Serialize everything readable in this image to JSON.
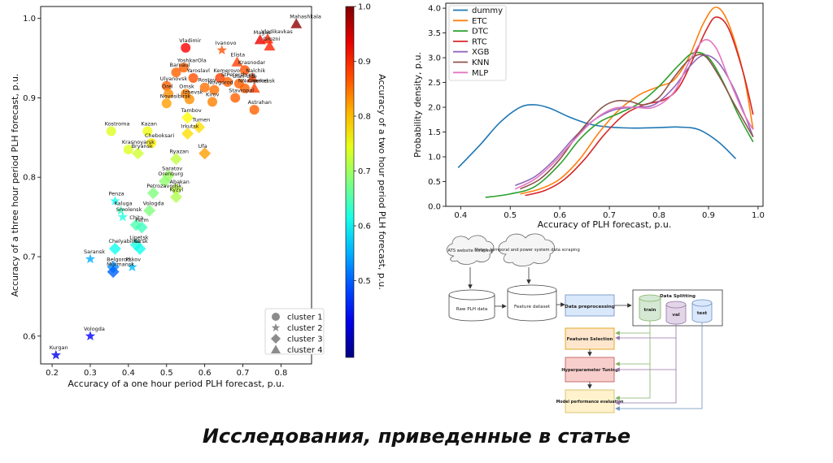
{
  "caption": "Исследования, приведенные в статье",
  "chart_data": [
    {
      "type": "scatter",
      "xlabel": "Accuracy of a one hour period PLH forecast, p.u.",
      "ylabel": "Accuracy of a three hour period PLH forecast, p.u.",
      "colorbar_label": "Accuracy of a two hour period PLH forecast, p.u.",
      "xlim": [
        0.17,
        0.88
      ],
      "ylim": [
        0.565,
        1.015
      ],
      "x_ticks": [
        "0.2",
        "0.3",
        "0.4",
        "0.5",
        "0.6",
        "0.7",
        "0.8"
      ],
      "x_tick_values": [
        0.2,
        0.3,
        0.4,
        0.5,
        0.6,
        0.7,
        0.8
      ],
      "y_ticks": [
        "0.6",
        "0.7",
        "0.8",
        "0.9",
        "1.0"
      ],
      "y_tick_values": [
        0.6,
        0.7,
        0.8,
        0.9,
        1.0
      ],
      "colorbar_range": [
        0.36,
        1.0
      ],
      "colorbar_ticks": [
        "0.5",
        "0.6",
        "0.7",
        "0.8",
        "0.9",
        "1.0"
      ],
      "colorbar_tick_values": [
        0.5,
        0.6,
        0.7,
        0.8,
        0.9,
        1.0
      ],
      "colormap": "jet",
      "legend_position": "bottom-right",
      "legend": [
        {
          "label": "cluster 1",
          "marker": "circle"
        },
        {
          "label": "cluster 2",
          "marker": "star"
        },
        {
          "label": "cluster 3",
          "marker": "diamond"
        },
        {
          "label": "cluster 4",
          "marker": "triangle"
        }
      ],
      "points": [
        {
          "label": "Mahashkala",
          "x": 0.84,
          "y": 0.993,
          "c": 0.99,
          "cluster": 4
        },
        {
          "label": "Magas",
          "x": 0.745,
          "y": 0.973,
          "c": 0.93,
          "cluster": 4
        },
        {
          "label": "Vladikavkas",
          "x": 0.765,
          "y": 0.974,
          "c": 0.9,
          "cluster": 4
        },
        {
          "label": "Grozni",
          "x": 0.77,
          "y": 0.965,
          "c": 0.9,
          "cluster": 4
        },
        {
          "label": "Vladimir",
          "x": 0.55,
          "y": 0.963,
          "c": 0.92,
          "cluster": 1
        },
        {
          "label": "Ivanovo",
          "x": 0.645,
          "y": 0.96,
          "c": 0.87,
          "cluster": 2
        },
        {
          "label": "YoshkarOla",
          "x": 0.545,
          "y": 0.938,
          "c": 0.86,
          "cluster": 1
        },
        {
          "label": "Elista",
          "x": 0.685,
          "y": 0.945,
          "c": 0.88,
          "cluster": 4
        },
        {
          "label": "Barnaul",
          "x": 0.525,
          "y": 0.932,
          "c": 0.86,
          "cluster": 1
        },
        {
          "label": "Krasnodar",
          "x": 0.705,
          "y": 0.935,
          "c": 0.87,
          "cluster": 1
        },
        {
          "label": "Yaroslavl",
          "x": 0.57,
          "y": 0.925,
          "c": 0.87,
          "cluster": 1
        },
        {
          "label": "Kemerovo",
          "x": 0.64,
          "y": 0.925,
          "c": 0.88,
          "cluster": 1
        },
        {
          "label": "Nalchik",
          "x": 0.725,
          "y": 0.925,
          "c": 0.88,
          "cluster": 4
        },
        {
          "label": "Ulyanovsk",
          "x": 0.5,
          "y": 0.915,
          "c": 0.86,
          "cluster": 1
        },
        {
          "label": "StPetersburg",
          "x": 0.66,
          "y": 0.92,
          "c": 0.86,
          "cluster": 1
        },
        {
          "label": "Ulan-Ude",
          "x": 0.69,
          "y": 0.918,
          "c": 0.86,
          "cluster": 1
        },
        {
          "label": "NNovgorod",
          "x": 0.705,
          "y": 0.912,
          "c": 0.86,
          "cluster": 1
        },
        {
          "label": "Rostov",
          "x": 0.6,
          "y": 0.913,
          "c": 0.85,
          "cluster": 1
        },
        {
          "label": "Novgorod",
          "x": 0.625,
          "y": 0.91,
          "c": 0.85,
          "cluster": 1
        },
        {
          "label": "Orel",
          "x": 0.505,
          "y": 0.905,
          "c": 0.83,
          "cluster": 1
        },
        {
          "label": "Omsk",
          "x": 0.55,
          "y": 0.905,
          "c": 0.84,
          "cluster": 1
        },
        {
          "label": "Cherkessk",
          "x": 0.73,
          "y": 0.912,
          "c": 0.88,
          "cluster": 4
        },
        {
          "label": "Izhevsk",
          "x": 0.56,
          "y": 0.898,
          "c": 0.83,
          "cluster": 1
        },
        {
          "label": "Kirov",
          "x": 0.62,
          "y": 0.895,
          "c": 0.84,
          "cluster": 1
        },
        {
          "label": "Stavropol",
          "x": 0.68,
          "y": 0.9,
          "c": 0.86,
          "cluster": 1
        },
        {
          "label": "Novosibirsk",
          "x": 0.5,
          "y": 0.893,
          "c": 0.82,
          "cluster": 1
        },
        {
          "label": "Astrahan",
          "x": 0.73,
          "y": 0.885,
          "c": 0.86,
          "cluster": 1
        },
        {
          "label": "Tambov",
          "x": 0.555,
          "y": 0.875,
          "c": 0.76,
          "cluster": 3
        },
        {
          "label": "Tumen",
          "x": 0.585,
          "y": 0.863,
          "c": 0.78,
          "cluster": 3
        },
        {
          "label": "Kostroma",
          "x": 0.355,
          "y": 0.858,
          "c": 0.74,
          "cluster": 1
        },
        {
          "label": "Kazan",
          "x": 0.45,
          "y": 0.858,
          "c": 0.75,
          "cluster": 1
        },
        {
          "label": "Irkutsk",
          "x": 0.555,
          "y": 0.855,
          "c": 0.78,
          "cluster": 3
        },
        {
          "label": "Cheboksari",
          "x": 0.46,
          "y": 0.843,
          "c": 0.77,
          "cluster": 1
        },
        {
          "label": "Ufa",
          "x": 0.6,
          "y": 0.83,
          "c": 0.82,
          "cluster": 3
        },
        {
          "label": "Krasnoyarsk",
          "x": 0.4,
          "y": 0.835,
          "c": 0.74,
          "cluster": 1
        },
        {
          "label": "Bryansk",
          "x": 0.425,
          "y": 0.83,
          "c": 0.73,
          "cluster": 3
        },
        {
          "label": "Ryazan",
          "x": 0.525,
          "y": 0.823,
          "c": 0.72,
          "cluster": 3
        },
        {
          "label": "Saratov",
          "x": 0.505,
          "y": 0.802,
          "c": 0.7,
          "cluster": 3
        },
        {
          "label": "Orenburg",
          "x": 0.495,
          "y": 0.795,
          "c": 0.69,
          "cluster": 3
        },
        {
          "label": "Abakan",
          "x": 0.525,
          "y": 0.785,
          "c": 0.72,
          "cluster": 3
        },
        {
          "label": "Petrozavodsk",
          "x": 0.465,
          "y": 0.78,
          "c": 0.68,
          "cluster": 3
        },
        {
          "label": "Kyzyl",
          "x": 0.525,
          "y": 0.775,
          "c": 0.71,
          "cluster": 3
        },
        {
          "label": "Penza",
          "x": 0.365,
          "y": 0.77,
          "c": 0.61,
          "cluster": 2
        },
        {
          "label": "Kaluga",
          "x": 0.38,
          "y": 0.758,
          "c": 0.64,
          "cluster": 2
        },
        {
          "label": "Vologda",
          "x": 0.455,
          "y": 0.758,
          "c": 0.68,
          "cluster": 3
        },
        {
          "label": "Smolensk",
          "x": 0.385,
          "y": 0.75,
          "c": 0.62,
          "cluster": 2
        },
        {
          "label": "Chita",
          "x": 0.42,
          "y": 0.74,
          "c": 0.65,
          "cluster": 3
        },
        {
          "label": "Perm",
          "x": 0.435,
          "y": 0.737,
          "c": 0.64,
          "cluster": 3
        },
        {
          "label": "Lipetsk",
          "x": 0.42,
          "y": 0.715,
          "c": 0.62,
          "cluster": 3
        },
        {
          "label": "Chelyabinsk",
          "x": 0.365,
          "y": 0.71,
          "c": 0.61,
          "cluster": 3
        },
        {
          "label": "Kursk",
          "x": 0.43,
          "y": 0.71,
          "c": 0.61,
          "cluster": 3
        },
        {
          "label": "Saransk",
          "x": 0.3,
          "y": 0.697,
          "c": 0.55,
          "cluster": 2
        },
        {
          "label": "Belgorod",
          "x": 0.36,
          "y": 0.687,
          "c": 0.53,
          "cluster": 3
        },
        {
          "label": "Pskov",
          "x": 0.41,
          "y": 0.687,
          "c": 0.56,
          "cluster": 2
        },
        {
          "label": "Murmansk",
          "x": 0.36,
          "y": 0.681,
          "c": 0.5,
          "cluster": 3
        },
        {
          "label": "Vologda",
          "x": 0.3,
          "y": 0.6,
          "c": 0.44,
          "cluster": 2
        },
        {
          "label": "Kurgan",
          "x": 0.21,
          "y": 0.576,
          "c": 0.43,
          "cluster": 2
        }
      ]
    },
    {
      "type": "line",
      "xlabel": "Accuracy of PLH forecast, p.u.",
      "ylabel": "Probability density, p.u.",
      "xlim": [
        0.37,
        1.01
      ],
      "ylim": [
        0.0,
        4.1
      ],
      "x_ticks": [
        "0.4",
        "0.5",
        "0.6",
        "0.7",
        "0.8",
        "0.9",
        "1.0"
      ],
      "x_tick_values": [
        0.4,
        0.5,
        0.6,
        0.7,
        0.8,
        0.9,
        1.0
      ],
      "y_ticks": [
        "0.0",
        "0.5",
        "1.0",
        "1.5",
        "2.0",
        "2.5",
        "3.0",
        "3.5",
        "4.0"
      ],
      "y_tick_values": [
        0.0,
        0.5,
        1.0,
        1.5,
        2.0,
        2.5,
        3.0,
        3.5,
        4.0
      ],
      "legend_position": "top-left",
      "series": [
        {
          "name": "dummy",
          "color": "#1f77b4",
          "x": [
            0.395,
            0.44,
            0.48,
            0.52,
            0.55,
            0.58,
            0.62,
            0.66,
            0.7,
            0.75,
            0.8,
            0.84,
            0.88,
            0.92,
            0.955
          ],
          "y": [
            0.78,
            1.25,
            1.7,
            2.0,
            2.05,
            1.98,
            1.8,
            1.66,
            1.6,
            1.58,
            1.59,
            1.6,
            1.55,
            1.3,
            0.96
          ]
        },
        {
          "name": "ETC",
          "color": "#ff7f0e",
          "x": [
            0.52,
            0.56,
            0.6,
            0.64,
            0.68,
            0.72,
            0.76,
            0.8,
            0.83,
            0.86,
            0.89,
            0.915,
            0.94,
            0.97,
            0.99
          ],
          "y": [
            0.25,
            0.35,
            0.55,
            0.95,
            1.5,
            1.95,
            2.25,
            2.42,
            2.55,
            3.0,
            3.7,
            4.02,
            3.7,
            2.7,
            1.55
          ]
        },
        {
          "name": "DTC",
          "color": "#2ca02c",
          "x": [
            0.45,
            0.5,
            0.55,
            0.6,
            0.64,
            0.68,
            0.72,
            0.76,
            0.8,
            0.84,
            0.87,
            0.9,
            0.93,
            0.96,
            0.99
          ],
          "y": [
            0.18,
            0.25,
            0.4,
            0.85,
            1.35,
            1.7,
            1.88,
            2.08,
            2.42,
            2.85,
            3.1,
            3.0,
            2.5,
            1.85,
            1.3
          ]
        },
        {
          "name": "RTC",
          "color": "#d62728",
          "x": [
            0.53,
            0.57,
            0.61,
            0.65,
            0.69,
            0.73,
            0.77,
            0.81,
            0.84,
            0.87,
            0.895,
            0.915,
            0.94,
            0.97,
            0.99
          ],
          "y": [
            0.22,
            0.32,
            0.55,
            0.95,
            1.45,
            1.85,
            2.05,
            2.15,
            2.4,
            3.0,
            3.55,
            3.82,
            3.6,
            2.7,
            1.85
          ]
        },
        {
          "name": "XGB",
          "color": "#9467bd",
          "x": [
            0.51,
            0.55,
            0.59,
            0.63,
            0.67,
            0.71,
            0.75,
            0.79,
            0.83,
            0.86,
            0.89,
            0.92,
            0.95,
            0.975,
            0.99
          ],
          "y": [
            0.42,
            0.6,
            0.95,
            1.4,
            1.75,
            1.95,
            2.0,
            2.05,
            2.4,
            2.8,
            3.05,
            2.9,
            2.4,
            1.8,
            1.4
          ]
        },
        {
          "name": "KNN",
          "color": "#8c564b",
          "x": [
            0.52,
            0.56,
            0.6,
            0.64,
            0.68,
            0.71,
            0.74,
            0.77,
            0.8,
            0.83,
            0.86,
            0.89,
            0.92,
            0.95,
            0.99
          ],
          "y": [
            0.35,
            0.55,
            0.95,
            1.5,
            1.95,
            2.12,
            2.12,
            2.05,
            2.2,
            2.6,
            2.95,
            3.05,
            2.65,
            2.1,
            1.4
          ]
        },
        {
          "name": "MLP",
          "color": "#e377c2",
          "x": [
            0.51,
            0.55,
            0.59,
            0.63,
            0.67,
            0.71,
            0.75,
            0.79,
            0.83,
            0.86,
            0.89,
            0.915,
            0.94,
            0.97,
            0.99
          ],
          "y": [
            0.35,
            0.55,
            0.9,
            1.35,
            1.75,
            1.98,
            2.0,
            2.0,
            2.3,
            2.9,
            3.35,
            3.2,
            2.6,
            1.9,
            1.55
          ]
        }
      ]
    }
  ],
  "flow": {
    "clouds": [
      "ATS website scraping",
      "Meteo, temporal and power system data scraping"
    ],
    "cylinders": [
      "Raw PLH data",
      "Feature dataset"
    ],
    "preprocessing": "Data preprocessing",
    "splitting_title": "Data Splitting",
    "splits": [
      "train",
      "val",
      "test"
    ],
    "steps": [
      "Features Selection",
      "Hyperparameter Tuning",
      "Model performance evaluation"
    ],
    "colors": {
      "box_blue": "#dae8fc",
      "box_orange": "#ffe6cc",
      "box_pink": "#f8cecc",
      "box_yellow": "#fff2cc",
      "train_green": "#d5e8d4",
      "val_purple": "#e1d5e7",
      "test_blue": "#dae8fc",
      "arrow_green": "#82b366",
      "arrow_purple": "#9673a6",
      "arrow_blue": "#6c8ebf"
    }
  }
}
